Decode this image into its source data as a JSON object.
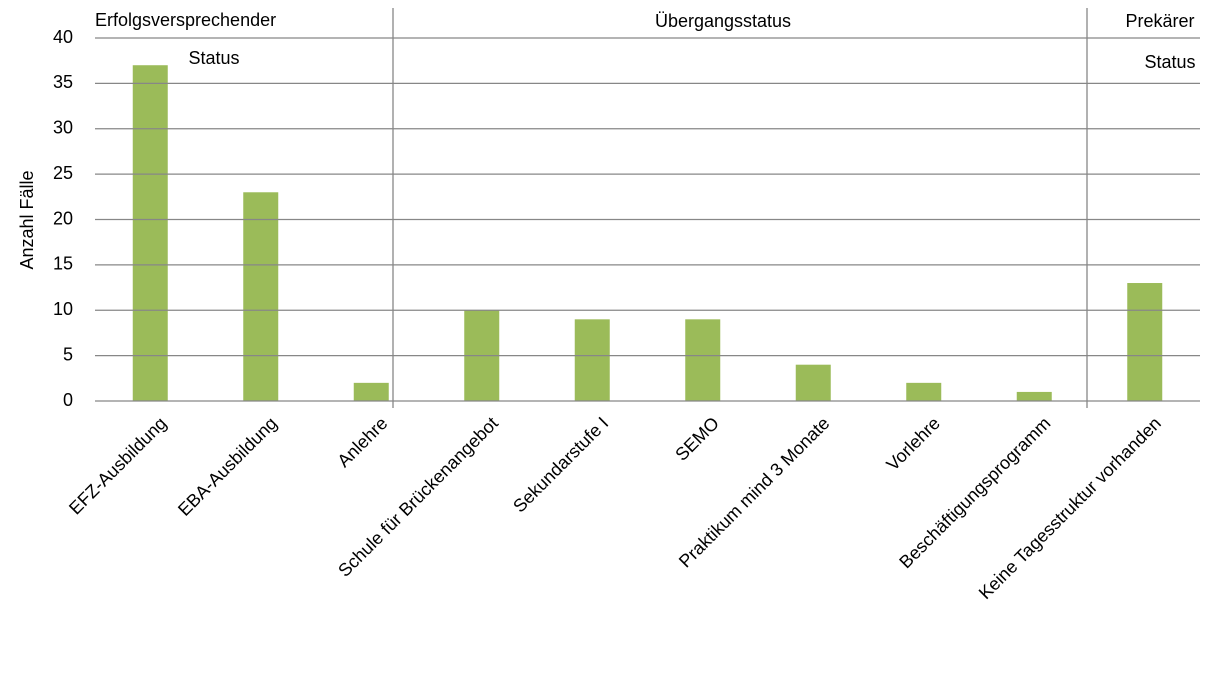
{
  "chart_data": {
    "type": "bar",
    "y_label": "Anzahl Fälle",
    "categories": [
      "EFZ-Ausbildung",
      "EBA-Ausbildung",
      "Anlehre",
      "Schule für Brückenangebot",
      "Sekundarstufe I",
      "SEMO",
      "Praktikum mind 3 Monate",
      "Vorlehre",
      "Beschäftigungsprogramm",
      "Keine Tagesstruktur vorhanden"
    ],
    "values": [
      37,
      23,
      2,
      10,
      9,
      9,
      4,
      2,
      1,
      13
    ],
    "color": "#9bbb59",
    "ylim": [
      0,
      40
    ],
    "yticks": [
      0,
      5,
      10,
      15,
      20,
      25,
      30,
      35,
      40
    ],
    "grid": true,
    "groups": [
      {
        "label": [
          "Erfolgsversprechender",
          "Status"
        ]
      },
      {
        "label": [
          "Übergangsstatus"
        ]
      },
      {
        "label": [
          "Prekärer",
          "Status"
        ]
      }
    ]
  }
}
